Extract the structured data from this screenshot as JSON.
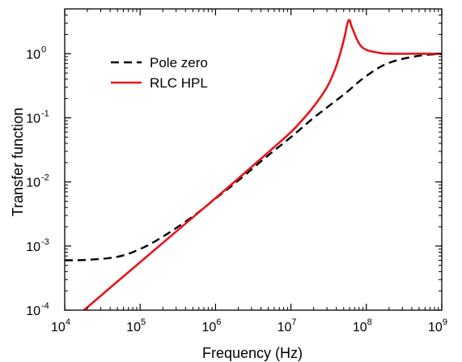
{
  "chart_data": {
    "type": "line",
    "xlabel": "Frequency (Hz)",
    "ylabel": "Transfer function",
    "xscale": "log",
    "yscale": "log",
    "xlim": [
      10000,
      1000000000
    ],
    "ylim": [
      0.0001,
      5
    ],
    "xticks": [
      {
        "value": 10000,
        "base": "10",
        "exp": "4"
      },
      {
        "value": 100000,
        "base": "10",
        "exp": "5"
      },
      {
        "value": 1000000,
        "base": "10",
        "exp": "6"
      },
      {
        "value": 10000000,
        "base": "10",
        "exp": "7"
      },
      {
        "value": 100000000,
        "base": "10",
        "exp": "8"
      },
      {
        "value": 1000000000,
        "base": "10",
        "exp": "9"
      }
    ],
    "yticks": [
      {
        "value": 0.0001,
        "base": "10",
        "exp": "-4"
      },
      {
        "value": 0.001,
        "base": "10",
        "exp": "-3"
      },
      {
        "value": 0.01,
        "base": "10",
        "exp": "-2"
      },
      {
        "value": 0.1,
        "base": "10",
        "exp": "-1"
      },
      {
        "value": 1,
        "base": "10",
        "exp": "0"
      }
    ],
    "grid": false,
    "legend_position": "top-left",
    "series": [
      {
        "name": "Pole zero",
        "color": "#000000",
        "style": "dashed",
        "x": [
          10000,
          20000,
          50000,
          100000,
          200000,
          500000,
          1000000,
          2000000,
          5000000,
          10000000,
          20000000,
          50000000,
          100000000,
          200000000,
          500000000,
          1000000000
        ],
        "y": [
          0.0006,
          0.00061,
          0.00068,
          0.0009,
          0.0014,
          0.0029,
          0.0055,
          0.0105,
          0.026,
          0.05,
          0.1,
          0.23,
          0.45,
          0.72,
          0.93,
          0.99
        ]
      },
      {
        "name": "RLC HPL",
        "color": "#e8141b",
        "style": "solid",
        "x": [
          18000,
          50000,
          100000,
          200000,
          500000,
          1000000,
          2000000,
          5000000,
          10000000,
          15000000,
          20000000,
          30000000,
          40000000,
          50000000,
          58000000,
          65000000,
          80000000,
          100000000,
          150000000,
          200000000,
          500000000,
          1000000000
        ],
        "y": [
          0.0001,
          0.00028,
          0.00056,
          0.00112,
          0.0028,
          0.0056,
          0.0113,
          0.029,
          0.06,
          0.1,
          0.15,
          0.3,
          0.65,
          1.6,
          3.3,
          2.5,
          1.45,
          1.15,
          1.03,
          1.0,
          1.0,
          1.0
        ]
      }
    ]
  }
}
